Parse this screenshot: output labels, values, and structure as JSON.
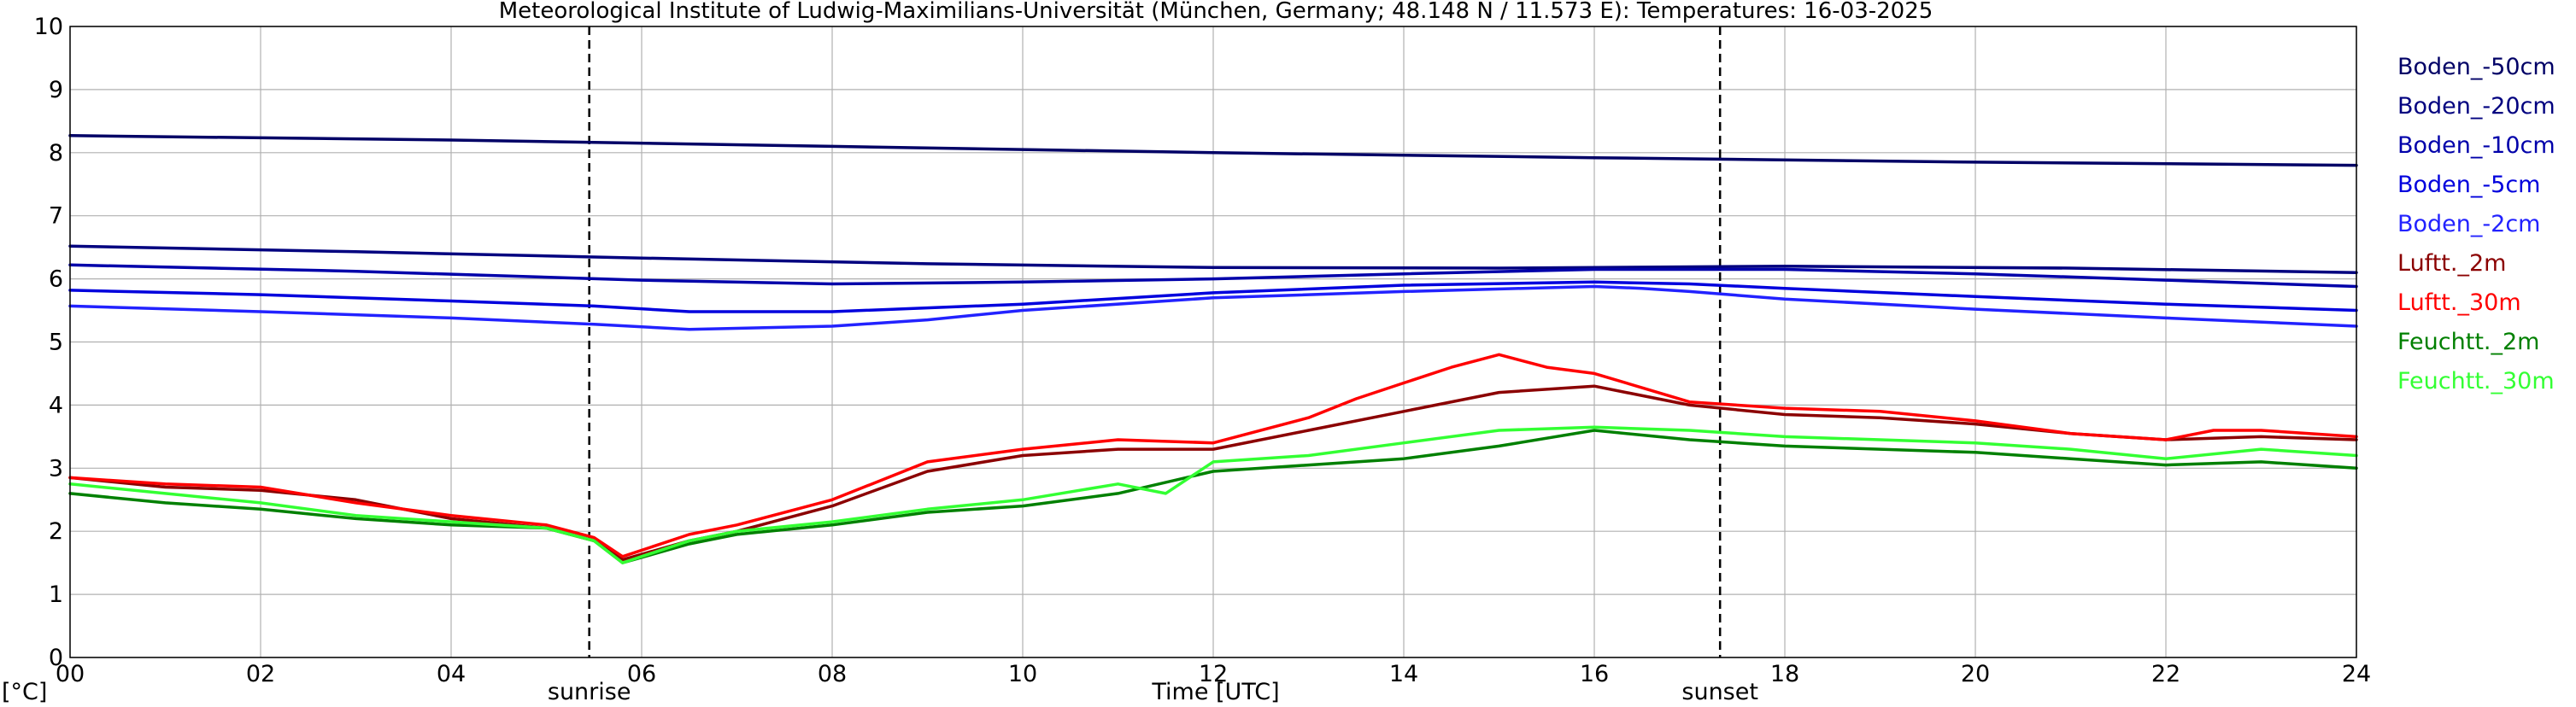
{
  "chart_data": {
    "type": "line",
    "title": "Meteorological Institute of Ludwig-Maximilians-Universität (München, Germany; 48.148 N / 11.573 E):  Temperatures: 16-03-2025",
    "xlabel": "Time [UTC]",
    "ylabel": "[°C]",
    "xlim": [
      0,
      24
    ],
    "ylim": [
      0,
      10
    ],
    "x_ticks": [
      "00",
      "02",
      "04",
      "06",
      "08",
      "10",
      "12",
      "14",
      "16",
      "18",
      "20",
      "22",
      "24"
    ],
    "y_ticks": [
      "0",
      "1",
      "2",
      "3",
      "4",
      "5",
      "6",
      "7",
      "8",
      "9",
      "10"
    ],
    "grid": true,
    "legend_position": "right",
    "markers": [
      {
        "label": "sunrise",
        "x": 5.45
      },
      {
        "label": "sunset",
        "x": 17.32
      }
    ],
    "series": [
      {
        "name": "Boden_-50cm",
        "color": "#000066",
        "x": [
          0,
          4,
          8,
          12,
          16,
          20,
          24
        ],
        "values": [
          8.27,
          8.2,
          8.1,
          8.0,
          7.92,
          7.85,
          7.8
        ]
      },
      {
        "name": "Boden_-20cm",
        "color": "#00007f",
        "x": [
          0,
          3,
          6,
          9,
          12,
          15,
          18,
          21,
          24
        ],
        "values": [
          6.52,
          6.43,
          6.33,
          6.24,
          6.18,
          6.17,
          6.2,
          6.17,
          6.1
        ]
      },
      {
        "name": "Boden_-10cm",
        "color": "#0000aa",
        "x": [
          0,
          3,
          6,
          8,
          10,
          12,
          14,
          16,
          18,
          20,
          22,
          24
        ],
        "values": [
          6.22,
          6.12,
          5.98,
          5.92,
          5.95,
          6.0,
          6.08,
          6.15,
          6.15,
          6.08,
          5.98,
          5.88
        ]
      },
      {
        "name": "Boden_-5cm",
        "color": "#0000dd",
        "x": [
          0,
          2,
          4,
          5.5,
          6.5,
          8,
          10,
          12,
          14,
          16,
          17,
          18,
          20,
          22,
          24
        ],
        "values": [
          5.82,
          5.75,
          5.65,
          5.57,
          5.48,
          5.48,
          5.6,
          5.78,
          5.9,
          5.95,
          5.92,
          5.85,
          5.72,
          5.6,
          5.5
        ]
      },
      {
        "name": "Boden_-2cm",
        "color": "#2222ff",
        "x": [
          0,
          2,
          4,
          5.5,
          6.5,
          8,
          9,
          10,
          12,
          14,
          16,
          16.5,
          17,
          18,
          20,
          22,
          24
        ],
        "values": [
          5.57,
          5.48,
          5.38,
          5.28,
          5.2,
          5.25,
          5.35,
          5.5,
          5.7,
          5.8,
          5.88,
          5.85,
          5.8,
          5.68,
          5.52,
          5.38,
          5.25
        ]
      },
      {
        "name": "Luftt._2m",
        "color": "#8b0000",
        "x": [
          0,
          1,
          2,
          3,
          4,
          5,
          5.5,
          5.8,
          6.5,
          7,
          8,
          9,
          10,
          11,
          12,
          13,
          14,
          15,
          16,
          17,
          18,
          19,
          20,
          21,
          22,
          23,
          24
        ],
        "values": [
          2.85,
          2.7,
          2.65,
          2.5,
          2.2,
          2.05,
          1.85,
          1.55,
          1.85,
          2.0,
          2.4,
          2.95,
          3.2,
          3.3,
          3.3,
          3.6,
          3.9,
          4.2,
          4.3,
          4.0,
          3.85,
          3.8,
          3.7,
          3.55,
          3.45,
          3.5,
          3.45
        ]
      },
      {
        "name": "Luftt._30m",
        "color": "#ff0000",
        "x": [
          0,
          1,
          2,
          3,
          4,
          5,
          5.5,
          5.8,
          6.5,
          7,
          8,
          9,
          10,
          11,
          12,
          13,
          13.5,
          14,
          14.5,
          15,
          15.5,
          16,
          17,
          18,
          19,
          20,
          21,
          22,
          22.5,
          23,
          24
        ],
        "values": [
          2.85,
          2.75,
          2.7,
          2.45,
          2.25,
          2.1,
          1.9,
          1.6,
          1.95,
          2.1,
          2.5,
          3.1,
          3.3,
          3.45,
          3.4,
          3.8,
          4.1,
          4.35,
          4.6,
          4.8,
          4.6,
          4.5,
          4.05,
          3.95,
          3.9,
          3.75,
          3.55,
          3.45,
          3.6,
          3.6,
          3.5
        ]
      },
      {
        "name": "Feuchtt._2m",
        "color": "#008000",
        "x": [
          0,
          1,
          2,
          3,
          4,
          5,
          5.5,
          5.8,
          6.5,
          7,
          8,
          9,
          10,
          11,
          12,
          13,
          14,
          15,
          16,
          17,
          18,
          19,
          20,
          21,
          22,
          23,
          24
        ],
        "values": [
          2.6,
          2.45,
          2.35,
          2.2,
          2.1,
          2.05,
          1.85,
          1.5,
          1.8,
          1.95,
          2.1,
          2.3,
          2.4,
          2.6,
          2.95,
          3.05,
          3.15,
          3.35,
          3.6,
          3.45,
          3.35,
          3.3,
          3.25,
          3.15,
          3.05,
          3.1,
          3.0
        ]
      },
      {
        "name": "Feuchtt._30m",
        "color": "#33ff33",
        "x": [
          0,
          1,
          2,
          3,
          4,
          5,
          5.5,
          5.8,
          6.5,
          7,
          8,
          9,
          10,
          11,
          11.5,
          12,
          13,
          14,
          15,
          16,
          17,
          18,
          19,
          20,
          21,
          22,
          23,
          24
        ],
        "values": [
          2.75,
          2.6,
          2.45,
          2.25,
          2.15,
          2.05,
          1.85,
          1.5,
          1.85,
          2.0,
          2.15,
          2.35,
          2.5,
          2.75,
          2.6,
          3.1,
          3.2,
          3.4,
          3.6,
          3.65,
          3.6,
          3.5,
          3.45,
          3.4,
          3.3,
          3.15,
          3.3,
          3.2
        ]
      }
    ]
  }
}
